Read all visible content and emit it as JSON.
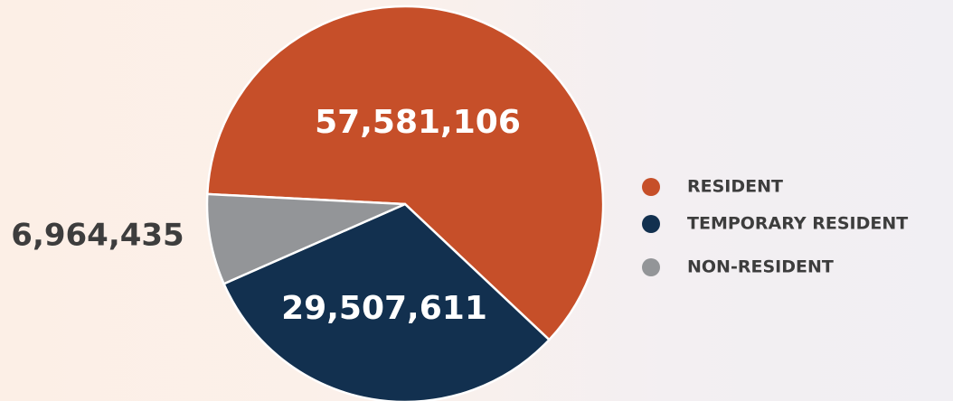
{
  "chart_data": {
    "type": "pie",
    "categories": [
      "RESIDENT",
      "TEMPORARY RESIDENT",
      "NON-RESIDENT"
    ],
    "values": [
      57581106,
      29507611,
      6964435
    ],
    "value_labels": [
      "57,581,106",
      "29,507,611",
      "6,964,435"
    ],
    "colors": [
      "#c64f29",
      "#12304f",
      "#939598"
    ]
  }
}
